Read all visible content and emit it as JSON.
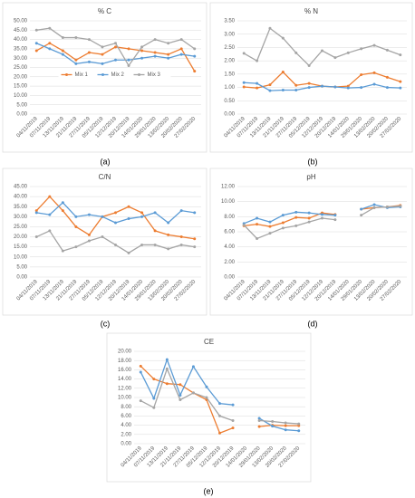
{
  "chart_data": [
    {
      "type": "line",
      "title": "% C",
      "caption": "(a)",
      "legend": "center",
      "categories": [
        "04/11/2019",
        "07/11/2019",
        "13/11/2019",
        "21/11/2019",
        "27/11/2019",
        "05/12/2019",
        "12/12/2019",
        "20/12/2019",
        "14/01/2020",
        "29/01/2020",
        "13/02/2020",
        "20/02/2020",
        "27/02/2020"
      ],
      "series": [
        {
          "name": "Mix 1",
          "color": "#ED7D31",
          "values": [
            34,
            38,
            34,
            29,
            33,
            32,
            36,
            35,
            34,
            33,
            32,
            35,
            23
          ]
        },
        {
          "name": "Mix 2",
          "color": "#5B9BD5",
          "values": [
            38,
            35,
            32,
            27,
            28,
            27,
            29,
            29,
            30,
            31,
            30,
            32,
            31
          ]
        },
        {
          "name": "Mix 3",
          "color": "#A5A5A5",
          "values": [
            45,
            46,
            41,
            41,
            40,
            36,
            38,
            26,
            36,
            40,
            38,
            40,
            35
          ]
        }
      ],
      "ylim": [
        0,
        50
      ],
      "yticks": [
        {
          "value": 0,
          "label": "0.00"
        },
        {
          "value": 5,
          "label": "5.00"
        },
        {
          "value": 10,
          "label": "10.00"
        },
        {
          "value": 15,
          "label": "15.00"
        },
        {
          "value": 20,
          "label": "20.00"
        },
        {
          "value": 25,
          "label": "25.00"
        },
        {
          "value": 30,
          "label": "30.00"
        },
        {
          "value": 35,
          "label": "35.00"
        },
        {
          "value": 40,
          "label": "40.00"
        },
        {
          "value": 45,
          "label": "45.00"
        },
        {
          "value": 50,
          "label": "50.00"
        }
      ]
    },
    {
      "type": "line",
      "title": "% N",
      "caption": "(b)",
      "categories": [
        "04/11/2019",
        "07/11/2019",
        "13/11/2019",
        "21/11/2019",
        "27/11/2019",
        "05/12/2019",
        "12/12/2019",
        "20/12/2019",
        "14/01/2020",
        "29/01/2020",
        "13/02/2020",
        "20/02/2020",
        "27/02/2020"
      ],
      "series": [
        {
          "color": "#ED7D31",
          "values": [
            1.02,
            0.98,
            1.1,
            1.58,
            1.08,
            1.15,
            1.05,
            1.02,
            1.05,
            1.48,
            1.55,
            1.38,
            1.22
          ]
        },
        {
          "color": "#5B9BD5",
          "values": [
            1.18,
            1.15,
            0.88,
            0.9,
            0.9,
            1.0,
            1.05,
            1.02,
            0.98,
            1.0,
            1.12,
            1.0,
            0.98
          ]
        },
        {
          "color": "#A5A5A5",
          "values": [
            2.28,
            2.0,
            3.22,
            2.85,
            2.3,
            1.82,
            2.38,
            2.12,
            2.3,
            2.45,
            2.58,
            2.4,
            2.22
          ]
        }
      ],
      "ylim": [
        0,
        3.5
      ],
      "yticks": [
        {
          "value": 0,
          "label": "0.00"
        },
        {
          "value": 0.5,
          "label": "0.50"
        },
        {
          "value": 1,
          "label": "1.00"
        },
        {
          "value": 1.5,
          "label": "1.50"
        },
        {
          "value": 2,
          "label": "2.00"
        },
        {
          "value": 2.5,
          "label": "2.50"
        },
        {
          "value": 3,
          "label": "3.00"
        },
        {
          "value": 3.5,
          "label": "3.50"
        }
      ]
    },
    {
      "type": "line",
      "title": "C/N",
      "caption": "(c)",
      "categories": [
        "04/11/2019",
        "07/11/2019",
        "13/11/2019",
        "21/11/2019",
        "27/11/2019",
        "05/12/2019",
        "12/12/2019",
        "20/12/2019",
        "14/01/2020",
        "29/01/2020",
        "13/02/2020",
        "20/02/2020",
        "27/02/2020"
      ],
      "series": [
        {
          "color": "#ED7D31",
          "values": [
            33,
            40,
            33,
            25,
            21,
            30,
            32,
            35,
            32,
            23,
            21,
            20,
            19
          ]
        },
        {
          "color": "#5B9BD5",
          "values": [
            32,
            31,
            37,
            30,
            31,
            30,
            27,
            29,
            30,
            32,
            27,
            33,
            32
          ]
        },
        {
          "color": "#A5A5A5",
          "values": [
            20,
            23,
            13,
            15,
            18,
            20,
            16,
            12,
            16,
            16,
            14,
            16,
            15
          ]
        }
      ],
      "ylim": [
        0,
        45
      ],
      "yticks": [
        {
          "value": 0,
          "label": "0.00"
        },
        {
          "value": 5,
          "label": "5.00"
        },
        {
          "value": 10,
          "label": "10.00"
        },
        {
          "value": 15,
          "label": "15.00"
        },
        {
          "value": 20,
          "label": "20.00"
        },
        {
          "value": 25,
          "label": "25.00"
        },
        {
          "value": 30,
          "label": "30.00"
        },
        {
          "value": 35,
          "label": "35.00"
        },
        {
          "value": 40,
          "label": "40.00"
        },
        {
          "value": 45,
          "label": "45.00"
        }
      ]
    },
    {
      "type": "line",
      "title": "pH",
      "caption": "(d)",
      "categories": [
        "04/11/2019",
        "07/11/2019",
        "13/11/2019",
        "21/11/2019",
        "27/11/2019",
        "05/12/2019",
        "12/12/2019",
        "20/12/2019",
        "14/01/2020",
        "29/01/2020",
        "13/02/2020",
        "20/02/2020",
        "27/02/2020"
      ],
      "series": [
        {
          "color": "#ED7D31",
          "values": [
            6.8,
            7.0,
            6.7,
            7.2,
            7.9,
            7.8,
            8.5,
            8.3,
            null,
            9.0,
            9.2,
            9.3,
            9.5
          ]
        },
        {
          "color": "#5B9BD5",
          "values": [
            7.1,
            7.8,
            7.3,
            8.2,
            8.6,
            8.5,
            8.3,
            8.2,
            null,
            9.0,
            9.6,
            9.2,
            9.3
          ]
        },
        {
          "color": "#A5A5A5",
          "values": [
            6.9,
            5.1,
            5.8,
            6.5,
            6.8,
            7.3,
            7.8,
            7.6,
            null,
            8.2,
            9.2,
            9.3,
            9.4
          ]
        }
      ],
      "ylim": [
        0,
        12
      ],
      "yticks": [
        {
          "value": 0,
          "label": "0.00"
        },
        {
          "value": 2,
          "label": "2.00"
        },
        {
          "value": 4,
          "label": "4.00"
        },
        {
          "value": 6,
          "label": "6.00"
        },
        {
          "value": 8,
          "label": "8.00"
        },
        {
          "value": 10,
          "label": "10.00"
        },
        {
          "value": 12,
          "label": "12.00"
        }
      ]
    },
    {
      "type": "line",
      "title": "CE",
      "caption": "(e)",
      "categories": [
        "04/11/2019",
        "07/11/2019",
        "13/11/2019",
        "21/11/2019",
        "27/11/2019",
        "05/12/2019",
        "12/12/2019",
        "20/12/2019",
        "14/01/2020",
        "29/01/2020",
        "13/02/2020",
        "20/02/2020",
        "27/02/2020"
      ],
      "series": [
        {
          "color": "#ED7D31",
          "values": [
            16.8,
            14,
            13,
            12.8,
            11,
            9.5,
            2.3,
            3.4,
            null,
            3.7,
            4.0,
            3.9,
            3.9
          ]
        },
        {
          "color": "#5B9BD5",
          "values": [
            15.5,
            9.8,
            18.2,
            10.5,
            16.7,
            12.3,
            8.7,
            8.4,
            null,
            5.5,
            3.8,
            3.0,
            2.8
          ]
        },
        {
          "color": "#A5A5A5",
          "values": [
            9.3,
            7.8,
            16.2,
            9.5,
            11,
            10,
            6.0,
            5.0,
            null,
            5.0,
            4.8,
            4.5,
            4.3
          ]
        }
      ],
      "ylim": [
        0,
        20
      ],
      "yticks": [
        {
          "value": 0,
          "label": "0.00"
        },
        {
          "value": 2,
          "label": "2.00"
        },
        {
          "value": 4,
          "label": "4.00"
        },
        {
          "value": 6,
          "label": "6.00"
        },
        {
          "value": 8,
          "label": "8.00"
        },
        {
          "value": 10,
          "label": "10.00"
        },
        {
          "value": 12,
          "label": "12.00"
        },
        {
          "value": 14,
          "label": "14.00"
        },
        {
          "value": 16,
          "label": "16.00"
        },
        {
          "value": 18,
          "label": "18.00"
        },
        {
          "value": 20,
          "label": "20.00"
        }
      ]
    }
  ]
}
